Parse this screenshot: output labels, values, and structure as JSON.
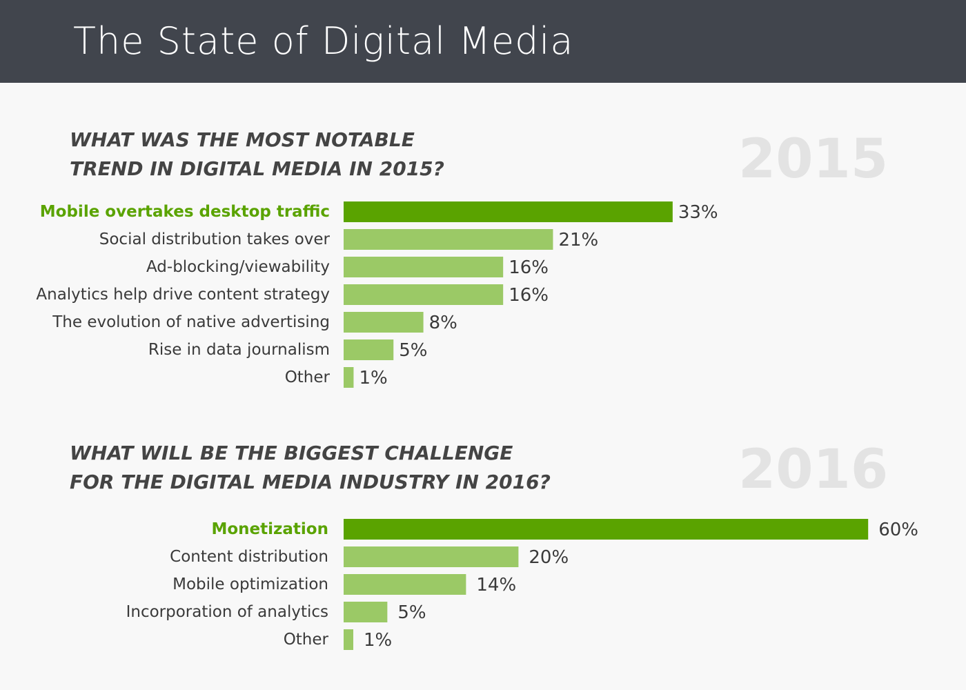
{
  "header": {
    "title": "The State of Digital Media"
  },
  "colors": {
    "header_bg": "#41454d",
    "highlight_bar": "#5aa300",
    "normal_bar": "#9bc966",
    "highlight_text": "#5aa300",
    "year_watermark": "#e3e3e3"
  },
  "chart_data": [
    {
      "type": "bar",
      "orientation": "horizontal",
      "year_label": "2015",
      "title_lines": [
        "WHAT WAS THE MOST NOTABLE",
        "TREND IN DIGITAL MEDIA IN 2015?"
      ],
      "categories": [
        "Mobile overtakes desktop traffic",
        "Social distribution takes over",
        "Ad-blocking/viewability",
        "Analytics help drive content strategy",
        "The evolution of native advertising",
        "Rise in data journalism",
        "Other"
      ],
      "values": [
        33,
        21,
        16,
        16,
        8,
        5,
        1
      ],
      "value_labels": [
        "33%",
        "21%",
        "16%",
        "16%",
        "8%",
        "5%",
        "1%"
      ],
      "highlight_index": 0,
      "unit": "%",
      "grid": false,
      "legend": "none"
    },
    {
      "type": "bar",
      "orientation": "horizontal",
      "year_label": "2016",
      "title_lines": [
        "WHAT WILL BE THE BIGGEST CHALLENGE",
        "FOR THE DIGITAL MEDIA INDUSTRY IN 2016?"
      ],
      "categories": [
        "Monetization",
        "Content distribution",
        "Mobile optimization",
        "Incorporation of analytics",
        "Other"
      ],
      "values": [
        60,
        20,
        14,
        5,
        1
      ],
      "value_labels": [
        "60%",
        "20%",
        "14%",
        "5%",
        "1%"
      ],
      "highlight_index": 0,
      "unit": "%",
      "grid": false,
      "legend": "none"
    }
  ]
}
